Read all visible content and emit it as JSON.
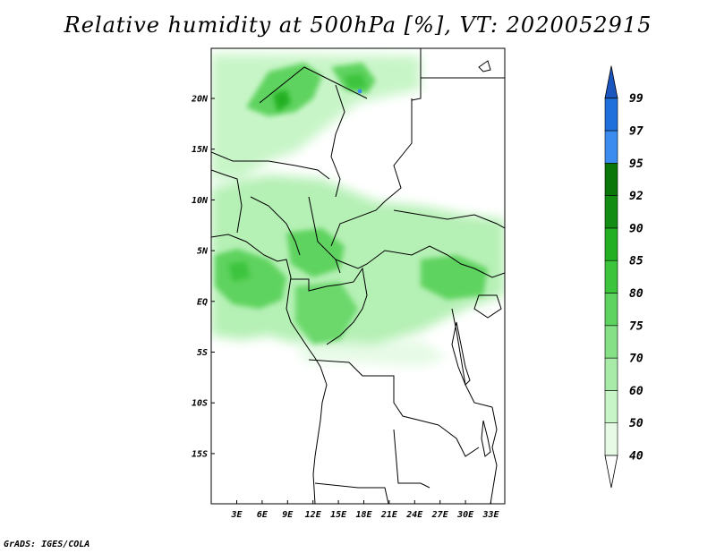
{
  "title": "Relative humidity at 500hPa [%], VT: 2020052915",
  "footer": "GrADS: IGES/COLA",
  "map": {
    "lat_ticks": [
      "20N",
      "15N",
      "10N",
      "5N",
      "EQ",
      "5S",
      "10S",
      "15S"
    ],
    "lon_ticks": [
      "3E",
      "6E",
      "9E",
      "12E",
      "15E",
      "18E",
      "21E",
      "24E",
      "27E",
      "30E",
      "33E"
    ]
  },
  "colorbar": {
    "levels": [
      "40",
      "50",
      "60",
      "70",
      "75",
      "80",
      "85",
      "90",
      "92",
      "95",
      "97",
      "99"
    ],
    "colors": [
      "#ffffff",
      "#e6fae6",
      "#c8f5c8",
      "#a8eba8",
      "#86e086",
      "#5fd35f",
      "#3cc43c",
      "#22b022",
      "#138c13",
      "#0a760a",
      "#3c8cf0",
      "#1f6fdc",
      "#1a55c0"
    ]
  }
}
